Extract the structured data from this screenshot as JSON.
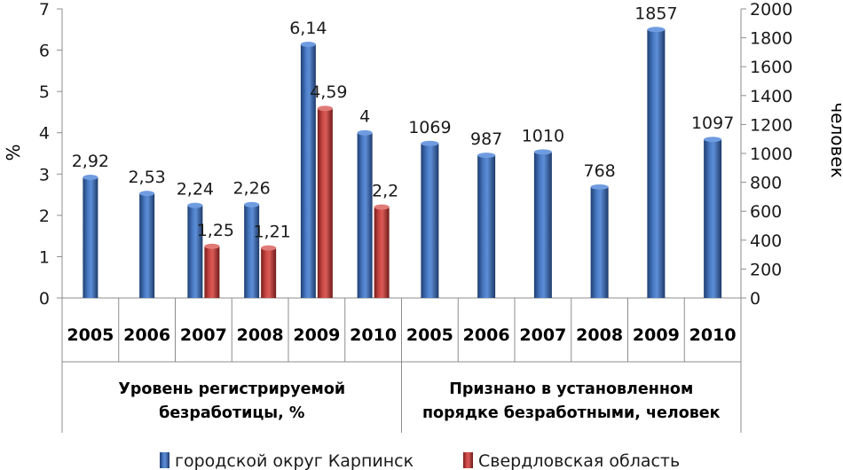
{
  "chart_data": {
    "type": "bar",
    "groups": [
      {
        "label_lines": [
          "Уровень регистрируемой",
          "безработицы, %"
        ],
        "axis": "left",
        "categories": [
          "2005",
          "2006",
          "2007",
          "2008",
          "2009",
          "2010"
        ]
      },
      {
        "label_lines": [
          "Признано в установленном",
          "порядке безработными, человек"
        ],
        "axis": "right",
        "categories": [
          "2005",
          "2006",
          "2007",
          "2008",
          "2009",
          "2010"
        ]
      }
    ],
    "series": [
      {
        "name": "городской округ Карпинск",
        "color": "#3a67ad",
        "values_left": [
          2.92,
          2.53,
          2.24,
          2.26,
          6.14,
          4
        ],
        "labels_left": [
          "2,92",
          "2,53",
          "2,24",
          "2,26",
          "6,14",
          "4"
        ],
        "values_right": [
          1069,
          987,
          1010,
          768,
          1857,
          1097
        ],
        "labels_right": [
          "1069",
          "987",
          "1010",
          "768",
          "1857",
          "1097"
        ]
      },
      {
        "name": "Свердловская область",
        "color": "#c0403d",
        "values_left": [
          null,
          null,
          1.25,
          1.21,
          4.59,
          2.2
        ],
        "labels_left": [
          "",
          "",
          "1,25",
          "1,21",
          "4,59",
          "2,2"
        ]
      }
    ],
    "left_axis": {
      "title": "%",
      "ylim": [
        0,
        7
      ],
      "ticks": [
        "0",
        "1",
        "2",
        "3",
        "4",
        "5",
        "6",
        "7"
      ]
    },
    "right_axis": {
      "title": "человек",
      "ylim": [
        0,
        2000
      ],
      "ticks": [
        "0",
        "200",
        "400",
        "600",
        "800",
        "1000",
        "1200",
        "1400",
        "1600",
        "1800",
        "2000"
      ]
    },
    "legend_position": "bottom",
    "grid": false
  }
}
